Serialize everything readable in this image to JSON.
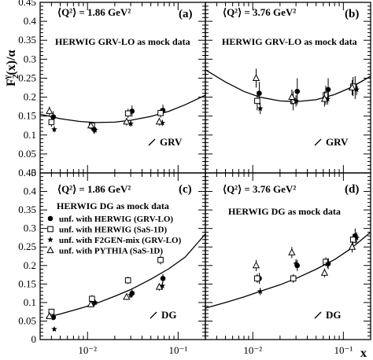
{
  "figure": {
    "ylabel": "F₂γ(x)/α",
    "ylabel_main": "F",
    "ylabel_sub": "2",
    "ylabel_sup": "γ",
    "ylabel_rest": "(x)/α",
    "xlabel": "x"
  },
  "legend": {
    "entries": [
      {
        "marker": "filled-circle",
        "label": "unf. with HERWIG (GRV-LO)"
      },
      {
        "marker": "open-square",
        "label": "unf. with HERWIG (SaS-1D)"
      },
      {
        "marker": "star",
        "label": "unf. with F2GEN-mix (GRV-LO)"
      },
      {
        "marker": "open-triangle",
        "label": "unf. with PYTHIA (SaS-1D)"
      }
    ]
  },
  "chart_data": [
    {
      "type": "scatter",
      "panel": "(a)",
      "q2_label": "⟨Q²⟩ = 1.86 GeV²",
      "annotation": "HERWIG GRV-LO as mock data",
      "curve_label": "GRV",
      "xscale": "log",
      "xlim": [
        0.003,
        0.2
      ],
      "ylim": [
        0,
        0.45
      ],
      "x_ticks": [
        "10⁻²",
        "10⁻¹"
      ],
      "y_ticks": [
        "0",
        "0.05",
        "0.1",
        "0.15",
        "0.2",
        "0.25",
        "0.3",
        "0.35",
        "0.4",
        "0.45"
      ],
      "curve": {
        "x": [
          0.003,
          0.005,
          0.008,
          0.012,
          0.02,
          0.03,
          0.05,
          0.08,
          0.12,
          0.2
        ],
        "y": [
          0.155,
          0.143,
          0.136,
          0.133,
          0.134,
          0.139,
          0.149,
          0.163,
          0.18,
          0.205
        ]
      },
      "series": [
        {
          "name": "unf. with HERWIG (GRV-LO)",
          "marker": "filled-circle",
          "x": [
            0.0042,
            0.0118,
            0.031,
            0.068
          ],
          "y": [
            0.148,
            0.115,
            0.163,
            0.165
          ],
          "err": [
            0.015,
            0.012,
            0.015,
            0.015
          ]
        },
        {
          "name": "unf. with HERWIG (SaS-1D)",
          "marker": "open-square",
          "x": [
            0.004,
            0.0112,
            0.028,
            0.064
          ],
          "y": [
            0.134,
            0.125,
            0.157,
            0.158
          ],
          "err": [
            0.012,
            0.01,
            0.012,
            0.012
          ]
        },
        {
          "name": "unf. with F2GEN-mix (GRV-LO)",
          "marker": "star",
          "x": [
            0.0043,
            0.0121,
            0.03,
            0.067
          ],
          "y": [
            0.115,
            0.113,
            0.13,
            0.132
          ],
          "err": [
            0.008,
            0.008,
            0.008,
            0.008
          ]
        },
        {
          "name": "unf. with PYTHIA (SaS-1D)",
          "marker": "open-triangle",
          "x": [
            0.0038,
            0.0109,
            0.027,
            0.062
          ],
          "y": [
            0.163,
            0.125,
            0.135,
            0.135
          ],
          "err": [
            0.012,
            0.01,
            0.01,
            0.01
          ]
        }
      ]
    },
    {
      "type": "scatter",
      "panel": "(b)",
      "q2_label": "⟨Q²⟩ = 3.76 GeV²",
      "annotation": "HERWIG GRV-LO as mock data",
      "curve_label": "GRV",
      "xscale": "log",
      "xlim": [
        0.003,
        0.2
      ],
      "ylim": [
        0,
        0.45
      ],
      "x_ticks": [
        "10⁻²",
        "10⁻¹"
      ],
      "y_ticks": [],
      "curve": {
        "x": [
          0.003,
          0.005,
          0.008,
          0.012,
          0.02,
          0.03,
          0.05,
          0.08,
          0.12,
          0.2
        ],
        "y": [
          0.272,
          0.24,
          0.215,
          0.2,
          0.19,
          0.188,
          0.193,
          0.207,
          0.225,
          0.255
        ]
      },
      "series": [
        {
          "name": "unf. with HERWIG (GRV-LO)",
          "marker": "filled-circle",
          "x": [
            0.0118,
            0.031,
            0.068,
            0.135
          ],
          "y": [
            0.21,
            0.215,
            0.22,
            0.225
          ],
          "err": [
            0.03,
            0.035,
            0.03,
            0.03
          ]
        },
        {
          "name": "unf. with HERWIG (SaS-1D)",
          "marker": "open-square",
          "x": [
            0.0112,
            0.028,
            0.064,
            0.128
          ],
          "y": [
            0.19,
            0.19,
            0.205,
            0.228
          ],
          "err": [
            0.025,
            0.025,
            0.025,
            0.025
          ]
        },
        {
          "name": "unf. with F2GEN-mix (GRV-LO)",
          "marker": "star",
          "x": [
            0.0121,
            0.03,
            0.067,
            0.14
          ],
          "y": [
            0.17,
            0.19,
            0.195,
            0.22
          ],
          "err": [
            0.015,
            0.015,
            0.015,
            0.015
          ]
        },
        {
          "name": "unf. with PYTHIA (SaS-1D)",
          "marker": "open-triangle",
          "x": [
            0.0109,
            0.027,
            0.062,
            0.125
          ],
          "y": [
            0.25,
            0.2,
            0.195,
            0.225
          ],
          "err": [
            0.025,
            0.02,
            0.02,
            0.02
          ]
        }
      ]
    },
    {
      "type": "scatter",
      "panel": "(c)",
      "q2_label": "⟨Q²⟩ = 1.86 GeV²",
      "annotation": "HERWIG DG as mock data",
      "curve_label": "DG",
      "xscale": "log",
      "xlim": [
        0.003,
        0.2
      ],
      "ylim": [
        0,
        0.45
      ],
      "x_ticks": [
        "10⁻²",
        "10⁻¹"
      ],
      "y_ticks": [
        "0",
        "0.05",
        "0.1",
        "0.15",
        "0.2",
        "0.25",
        "0.3",
        "0.35",
        "0.4",
        "0.45"
      ],
      "curve": {
        "x": [
          0.0035,
          0.005,
          0.008,
          0.012,
          0.02,
          0.03,
          0.05,
          0.08,
          0.12,
          0.2
        ],
        "y": [
          0.06,
          0.069,
          0.083,
          0.096,
          0.117,
          0.135,
          0.163,
          0.192,
          0.223,
          0.285
        ]
      },
      "series": [
        {
          "name": "unf. with HERWIG (GRV-LO)",
          "marker": "filled-circle",
          "x": [
            0.0042,
            0.0118,
            0.031,
            0.068
          ],
          "y": [
            0.06,
            0.1,
            0.125,
            0.165
          ],
          "err": [
            0.008,
            0.01,
            0.01,
            0.012
          ]
        },
        {
          "name": "unf. with HERWIG (SaS-1D)",
          "marker": "open-square",
          "x": [
            0.004,
            0.0112,
            0.028,
            0.064
          ],
          "y": [
            0.075,
            0.11,
            0.16,
            0.215
          ],
          "err": [
            0.008,
            0.01,
            0.01,
            0.012
          ]
        },
        {
          "name": "unf. with F2GEN-mix (GRV-LO)",
          "marker": "star",
          "x": [
            0.0043,
            0.0121,
            0.03,
            0.067
          ],
          "y": [
            0.028,
            0.1,
            0.12,
            0.145
          ],
          "err": [
            0.005,
            0.008,
            0.008,
            0.01
          ]
        },
        {
          "name": "unf. with PYTHIA (SaS-1D)",
          "marker": "open-triangle",
          "x": [
            0.0038,
            0.0109,
            0.027,
            0.062
          ],
          "y": [
            0.063,
            0.095,
            0.115,
            0.142
          ],
          "err": [
            0.006,
            0.008,
            0.008,
            0.01
          ]
        }
      ]
    },
    {
      "type": "scatter",
      "panel": "(d)",
      "q2_label": "⟨Q²⟩ = 3.76 GeV²",
      "annotation": "HERWIG DG as mock data",
      "curve_label": "DG",
      "xscale": "log",
      "xlim": [
        0.003,
        0.2
      ],
      "ylim": [
        0,
        0.45
      ],
      "x_ticks": [
        "10⁻²",
        "10⁻¹"
      ],
      "y_ticks": [],
      "curve": {
        "x": [
          0.003,
          0.005,
          0.008,
          0.012,
          0.02,
          0.03,
          0.05,
          0.08,
          0.12,
          0.2
        ],
        "y": [
          0.085,
          0.1,
          0.115,
          0.13,
          0.148,
          0.165,
          0.19,
          0.216,
          0.245,
          0.29
        ]
      },
      "series": [
        {
          "name": "unf. with HERWIG (GRV-LO)",
          "marker": "filled-circle",
          "x": [
            0.0118,
            0.031,
            0.068,
            0.135
          ],
          "y": [
            0.165,
            0.2,
            0.205,
            0.28
          ],
          "err": [
            0.015,
            0.015,
            0.015,
            0.02
          ]
        },
        {
          "name": "unf. with HERWIG (SaS-1D)",
          "marker": "open-square",
          "x": [
            0.0112,
            0.028,
            0.064,
            0.128
          ],
          "y": [
            0.165,
            0.165,
            0.21,
            0.27
          ],
          "err": [
            0.012,
            0.012,
            0.012,
            0.015
          ]
        },
        {
          "name": "unf. with F2GEN-mix (GRV-LO)",
          "marker": "star",
          "x": [
            0.0121,
            0.03,
            0.067,
            0.14
          ],
          "y": [
            0.13,
            0.205,
            0.205,
            0.275
          ],
          "err": [
            0.01,
            0.012,
            0.012,
            0.015
          ]
        },
        {
          "name": "unf. with PYTHIA (SaS-1D)",
          "marker": "open-triangle",
          "x": [
            0.0109,
            0.027,
            0.062,
            0.125
          ],
          "y": [
            0.2,
            0.235,
            0.18,
            0.25
          ],
          "err": [
            0.015,
            0.015,
            0.012,
            0.015
          ]
        }
      ]
    }
  ]
}
